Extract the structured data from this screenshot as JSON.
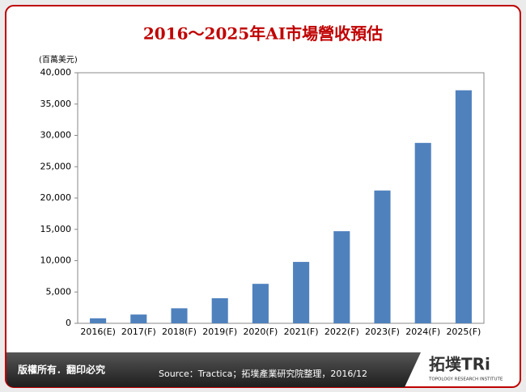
{
  "chart_data": {
    "type": "bar",
    "title": "2016～2025年AI市場營收預估",
    "y_unit_label": "(百萬美元)",
    "categories": [
      "2016(E)",
      "2017(F)",
      "2018(F)",
      "2019(F)",
      "2020(F)",
      "2021(F)",
      "2022(F)",
      "2023(F)",
      "2024(F)",
      "2025(F)"
    ],
    "values": [
      800,
      1400,
      2400,
      4000,
      6300,
      9800,
      14700,
      21200,
      28800,
      37200
    ],
    "color": "#4f81bd",
    "ylim": [
      0,
      40000
    ],
    "yticks": [
      0,
      {
        "value": 5000,
        "label": "5,000"
      },
      {
        "value": 10000,
        "label": "10,000"
      },
      {
        "value": 15000,
        "label": "15,000"
      },
      {
        "value": 20000,
        "label": "20,000"
      },
      {
        "value": 25000,
        "label": "25,000"
      },
      {
        "value": 30000,
        "label": "30,000"
      },
      {
        "value": 35000,
        "label": "35,000"
      },
      {
        "value": 40000,
        "label": "40,000"
      }
    ],
    "grid": false
  },
  "footer": {
    "copyright": "版權所有．翻印必究",
    "source": "Source：Tractica；拓墣產業研究院整理，2016/12",
    "logo": "拓墣TRi",
    "logo_subtitle": "TOPOLOGY RESEARCH INSTITUTE"
  }
}
